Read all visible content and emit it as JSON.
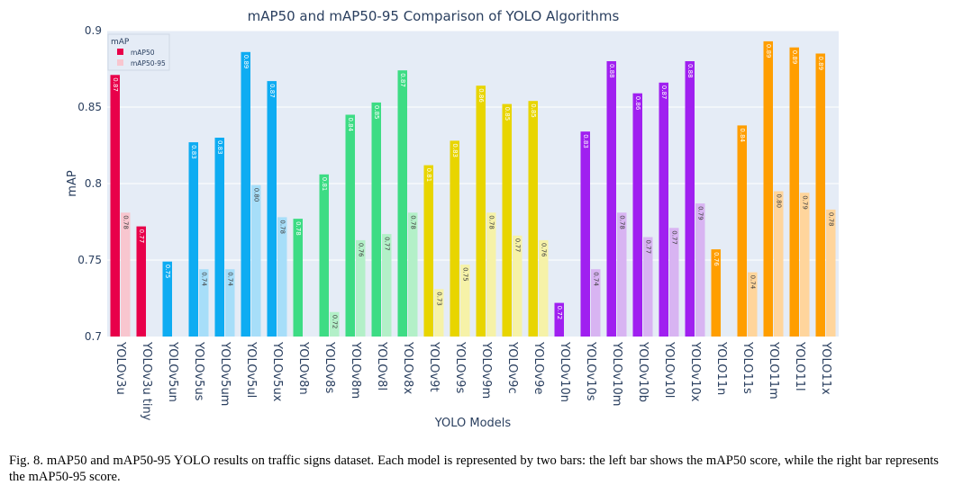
{
  "chart_data": {
    "type": "bar",
    "title": "mAP50 and mAP50-95 Comparison of YOLO Algorithms",
    "xlabel": "YOLO Models",
    "ylabel": "mAP",
    "ylim": [
      0.7,
      0.9
    ],
    "yticks": [
      "0.7",
      "0.75",
      "0.8",
      "0.85",
      "0.9"
    ],
    "legend": {
      "title": "mAP",
      "position": "top-left",
      "entries": [
        "mAP50",
        "mAP50-95"
      ]
    },
    "categories": [
      "YOLOv3u",
      "YOLOv3u tiny",
      "YOLOv5un",
      "YOLOv5us",
      "YOLOv5um",
      "YOLOv5ul",
      "YOLOv5ux",
      "YOLOv8n",
      "YOLOv8s",
      "YOLOv8m",
      "YOLOv8l",
      "YOLOv8x",
      "YOLOv9t",
      "YOLOv9s",
      "YOLOv9m",
      "YOLOv9c",
      "YOLOv9e",
      "YOLOv10n",
      "YOLOv10s",
      "YOLOv10m",
      "YOLOv10b",
      "YOLOv10l",
      "YOLOv10x",
      "YOLO11n",
      "YOLO11s",
      "YOLO11m",
      "YOLO11l",
      "YOLO11x"
    ],
    "series": [
      {
        "name": "mAP50",
        "values": [
          0.871,
          0.772,
          0.749,
          0.827,
          0.83,
          0.886,
          0.867,
          0.777,
          0.806,
          0.845,
          0.853,
          0.874,
          0.812,
          0.828,
          0.864,
          0.852,
          0.854,
          0.722,
          0.834,
          0.88,
          0.859,
          0.866,
          0.88,
          0.757,
          0.838,
          0.893,
          0.889,
          0.885
        ]
      },
      {
        "name": "mAP50-95",
        "values": [
          0.781,
          null,
          null,
          0.744,
          0.744,
          0.799,
          0.778,
          null,
          0.716,
          0.763,
          0.767,
          0.781,
          0.731,
          0.747,
          0.781,
          0.766,
          0.763,
          null,
          0.744,
          0.781,
          0.765,
          0.771,
          0.787,
          null,
          0.742,
          0.795,
          0.794,
          0.783
        ]
      }
    ],
    "labels": {
      "mAP50": [
        "0.87",
        "0.77",
        "0.75",
        "0.83",
        "0.83",
        "0.89",
        "0.87",
        "0.78",
        "0.81",
        "0.84",
        "0.85",
        "0.87",
        "0.81",
        "0.83",
        "0.86",
        "0.85",
        "0.85",
        "0.72",
        "0.83",
        "0.88",
        "0.86",
        "0.87",
        "0.88",
        "0.76",
        "0.84",
        "0.89",
        "0.89",
        "0.89"
      ],
      "mAP50-95": [
        "0.78",
        null,
        null,
        "0.74",
        "0.74",
        "0.80",
        "0.78",
        null,
        "0.72",
        "0.76",
        "0.77",
        "0.78",
        "0.73",
        "0.75",
        "0.78",
        "0.77",
        "0.76",
        null,
        "0.74",
        "0.78",
        "0.77",
        "0.77",
        "0.79",
        null,
        "0.74",
        "0.80",
        "0.79",
        "0.78"
      ]
    },
    "colors": [
      "#e8004a",
      "#e8004a",
      "#0eacf2",
      "#0eacf2",
      "#0eacf2",
      "#0eacf2",
      "#0eacf2",
      "#3ddc84",
      "#3ddc84",
      "#3ddc84",
      "#3ddc84",
      "#3ddc84",
      "#e8d500",
      "#e8d500",
      "#e8d500",
      "#e8d500",
      "#e8d500",
      "#a020f0",
      "#a020f0",
      "#a020f0",
      "#a020f0",
      "#a020f0",
      "#a020f0",
      "#ff9e00",
      "#ff9e00",
      "#ff9e00",
      "#ff9e00",
      "#ff9e00"
    ],
    "light_colors": [
      "#f8c6cf",
      "#f8c6cf",
      "#a7def9",
      "#a7def9",
      "#a7def9",
      "#a7def9",
      "#a7def9",
      "#b3f0c8",
      "#b3f0c8",
      "#b3f0c8",
      "#b3f0c8",
      "#b3f0c8",
      "#f6f2a8",
      "#f6f2a8",
      "#f6f2a8",
      "#f6f2a8",
      "#f6f2a8",
      "#d8b4f2",
      "#d8b4f2",
      "#d8b4f2",
      "#d8b4f2",
      "#d8b4f2",
      "#d8b4f2",
      "#ffd59c",
      "#ffd59c",
      "#ffd59c",
      "#ffd59c",
      "#ffd59c"
    ],
    "plot_background": "#e5ecf6",
    "text_color": "#2a3f5f"
  },
  "caption": "Fig. 8.  mAP50 and mAP50-95 YOLO results on traffic signs dataset. Each model is represented by two bars: the left bar shows the mAP50 score, while the right bar represents the mAP50-95 score."
}
